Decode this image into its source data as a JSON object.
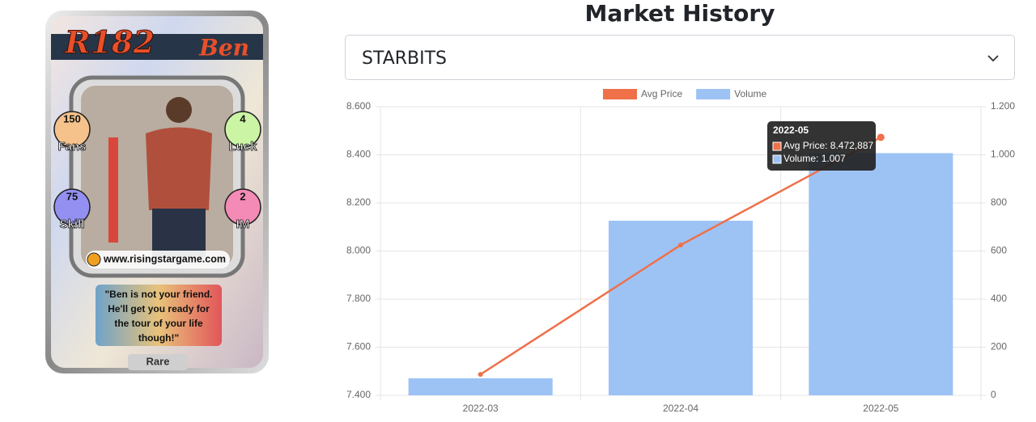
{
  "card": {
    "id": "R182",
    "name": "Ben",
    "stats": [
      {
        "value": "150",
        "label": "Fans"
      },
      {
        "value": "4",
        "label": "Luck"
      },
      {
        "value": "75",
        "label": "Skill"
      },
      {
        "value": "2",
        "label": "IM"
      }
    ],
    "website": "www.risingstargame.com",
    "quote": [
      "\"Ben is not your friend.",
      "He'll get you ready for",
      "the tour of your life",
      "though!\""
    ],
    "rarity": "Rare"
  },
  "selector": {
    "value": "STARBITS"
  },
  "chart_data": {
    "type": "bar",
    "title": "Market History",
    "categories": [
      "2022-03",
      "2022-04",
      "2022-05"
    ],
    "series": [
      {
        "name": "Avg Price",
        "type": "line",
        "color": "#ef7049",
        "values": [
          7487,
          8025,
          8472.887
        ]
      },
      {
        "name": "Volume",
        "type": "bar",
        "axis": "y2",
        "color": "#9dc3f5",
        "values": [
          71,
          726,
          1007
        ]
      }
    ],
    "ylim": [
      7400,
      8600
    ],
    "yticks": [
      {
        "value": 7400,
        "label": "7.400"
      },
      {
        "value": 7600,
        "label": "7.600"
      },
      {
        "value": 7800,
        "label": "7.800"
      },
      {
        "value": 8000,
        "label": "8.000"
      },
      {
        "value": 8200,
        "label": "8.200"
      },
      {
        "value": 8400,
        "label": "8.400"
      },
      {
        "value": 8600,
        "label": "8.600"
      }
    ],
    "y2lim": [
      0,
      1200
    ],
    "y2ticks": [
      0,
      200,
      400,
      600,
      800,
      {
        "value": 1000,
        "label": "1.000"
      },
      {
        "value": 1200,
        "label": "1.200"
      }
    ],
    "grid": true,
    "legend": "top",
    "tooltip": {
      "title": "2022-05",
      "lines": [
        "Avg Price: 8.472,887",
        "Volume: 1.007"
      ]
    }
  }
}
